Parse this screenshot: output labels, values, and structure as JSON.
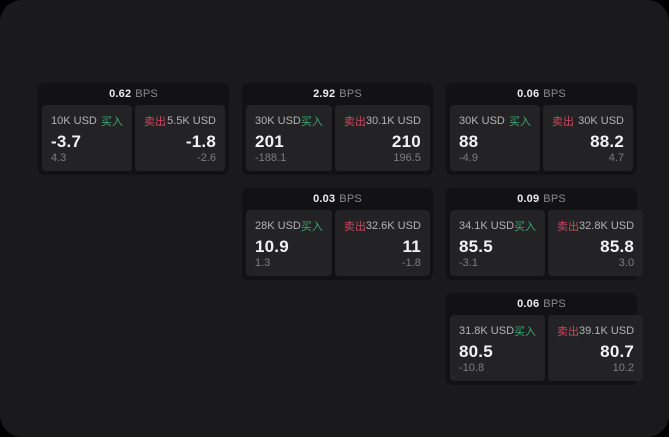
{
  "labels": {
    "bps_unit": "BPS",
    "buy": "买入",
    "sell": "卖出"
  },
  "colors": {
    "buy": "#3aa96e",
    "sell": "#c9485e",
    "page_bg": "#1a1a1c",
    "card_bg": "#121214",
    "panel_bg": "#232325"
  },
  "cards": [
    {
      "bps": "0.62",
      "buy": {
        "amount": "10K USD",
        "price": "-3.7",
        "change": "4.3"
      },
      "sell": {
        "amount": "5.5K USD",
        "price": "-1.8",
        "change": "-2.6"
      }
    },
    {
      "bps": "2.92",
      "buy": {
        "amount": "30K USD",
        "price": "201",
        "change": "-188.1"
      },
      "sell": {
        "amount": "30.1K USD",
        "price": "210",
        "change": "196.5"
      }
    },
    {
      "bps": "0.06",
      "buy": {
        "amount": "30K USD",
        "price": "88",
        "change": "-4.9"
      },
      "sell": {
        "amount": "30K USD",
        "price": "88.2",
        "change": "4.7"
      }
    },
    {
      "bps": "0.03",
      "buy": {
        "amount": "28K USD",
        "price": "10.9",
        "change": "1.3"
      },
      "sell": {
        "amount": "32.6K USD",
        "price": "11",
        "change": "-1.8"
      }
    },
    {
      "bps": "0.09",
      "buy": {
        "amount": "34.1K USD",
        "price": "85.5",
        "change": "-3.1"
      },
      "sell": {
        "amount": "32.8K USD",
        "price": "85.8",
        "change": "3.0"
      }
    },
    {
      "bps": "0.06",
      "buy": {
        "amount": "31.8K USD",
        "price": "80.5",
        "change": "-10.8"
      },
      "sell": {
        "amount": "39.1K USD",
        "price": "80.7",
        "change": "10.2"
      }
    }
  ]
}
